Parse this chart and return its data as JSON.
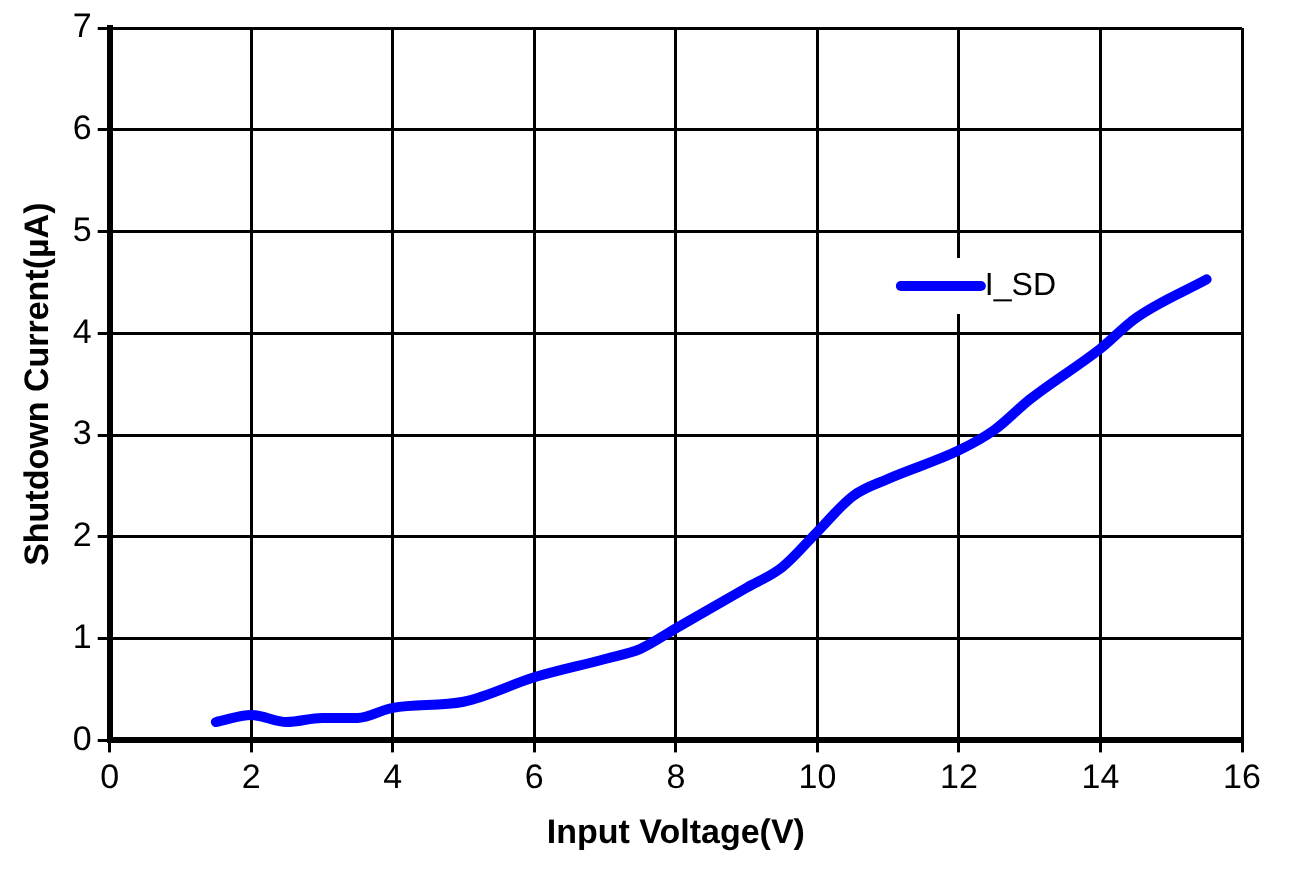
{
  "chart_data": {
    "type": "line",
    "xlabel": "Input Voltage(V)",
    "ylabel": "Shutdown Current(µA)",
    "xlim": [
      0,
      16
    ],
    "xticks": [
      0,
      2,
      4,
      6,
      8,
      10,
      12,
      14,
      16
    ],
    "ylim": [
      0,
      7
    ],
    "yticks": [
      0,
      1,
      2,
      3,
      4,
      5,
      6,
      7
    ],
    "grid": true,
    "legend": "top right",
    "marker": "none",
    "series": [
      {
        "name": "I_SD",
        "color": "#0000ff",
        "x": [
          1.5,
          2,
          2.5,
          3,
          3.5,
          4,
          5,
          6,
          7,
          7.5,
          8,
          9,
          9.5,
          10,
          10.5,
          11,
          12,
          12.5,
          13,
          14,
          14.5,
          15.5
        ],
        "values": [
          0.18,
          0.25,
          0.18,
          0.22,
          0.22,
          0.32,
          0.38,
          0.62,
          0.8,
          0.9,
          1.1,
          1.5,
          1.7,
          2.05,
          2.4,
          2.57,
          2.85,
          3.05,
          3.35,
          3.85,
          4.15,
          4.53
        ]
      }
    ]
  }
}
